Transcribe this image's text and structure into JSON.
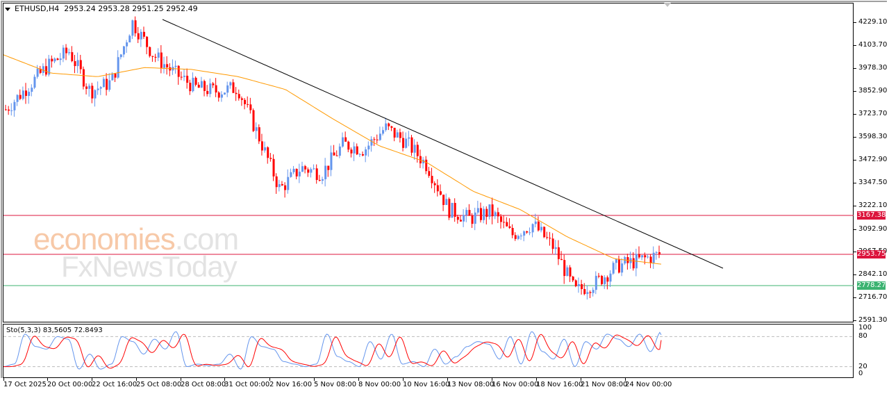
{
  "header": {
    "symbol": "ETHUSD,H4",
    "ohlc": "2953.24 2953.28 2951.25 2952.49"
  },
  "indicator": {
    "label": "Sto(5,3,3) 83,5605 72.8493",
    "levels": [
      "100",
      "80",
      "20",
      "0"
    ]
  },
  "watermark": {
    "line1_main": "economies",
    "line1_suffix": ".com",
    "line2": "FxNewsToday"
  },
  "colors": {
    "bull_candle": "#6495ed",
    "bear_candle": "#ff0000",
    "ma_line": "#ff9900",
    "trendline": "#000000",
    "resistance_line": "#dc143c",
    "support_line": "#3cb371",
    "sto_main": "#6495ed",
    "sto_signal": "#ff0000"
  },
  "price_tags": {
    "resistance_upper": "3167.38",
    "current": "2953.75",
    "support": "2778.27"
  },
  "chart_data": {
    "type": "candlestick",
    "title": "ETHUSD,H4",
    "instrument": "ETHUSD",
    "timeframe": "H4",
    "last_ohlc": {
      "open": 2953.24,
      "high": 2953.28,
      "low": 2951.25,
      "close": 2952.49
    },
    "y_ticks": [
      "4229.10",
      "4103.70",
      "3978.30",
      "3852.90",
      "3723.70",
      "3598.30",
      "3472.90",
      "3347.50",
      "3222.10",
      "3092.90",
      "2967.50",
      "2842.10",
      "2716.70",
      "2591.30"
    ],
    "x_ticks": [
      "17 Oct 2025",
      "20 Oct 00:00",
      "22 Oct 16:00",
      "25 Oct 08:00",
      "28 Oct 08:00",
      "31 Oct 00:00",
      "2 Nov 16:00",
      "5 Nov 08:00",
      "8 Nov 00:00",
      "10 Nov 16:00",
      "13 Nov 08:00",
      "16 Nov 00:00",
      "18 Nov 16:00",
      "21 Nov 08:00",
      "24 Nov 00:00"
    ],
    "ylim": [
      2591.3,
      4280
    ],
    "horizontal_lines": [
      {
        "name": "resistance",
        "value": 3167.38,
        "color": "#dc143c"
      },
      {
        "name": "resistance",
        "value": 2953.75,
        "color": "#dc143c"
      },
      {
        "name": "support",
        "value": 2778.27,
        "color": "#3cb371"
      }
    ],
    "trendline": {
      "from": {
        "date": "25 Oct 08:00",
        "price": 4240
      },
      "to": {
        "date": "25 Nov",
        "price": 2880
      }
    },
    "moving_average": {
      "color": "#ff9900",
      "approx_path": [
        4050,
        3950,
        3930,
        3980,
        3970,
        3930,
        3860,
        3700,
        3550,
        3460,
        3300,
        3200,
        3050,
        2930,
        2900
      ]
    },
    "close_series_approx": [
      3750,
      3870,
      3990,
      4070,
      3850,
      3900,
      4230,
      4050,
      3950,
      3870,
      3850,
      3870,
      3600,
      3310,
      3430,
      3400,
      3560,
      3530,
      3650,
      3570,
      3440,
      3200,
      3150,
      3190,
      3060,
      3120,
      2990,
      2750,
      2800,
      2890,
      2920,
      2953
    ],
    "stochastic": {
      "params": "5,3,3",
      "main": 83.5605,
      "signal": 72.8493,
      "levels": [
        80,
        20
      ],
      "ylim": [
        0,
        100
      ]
    }
  }
}
